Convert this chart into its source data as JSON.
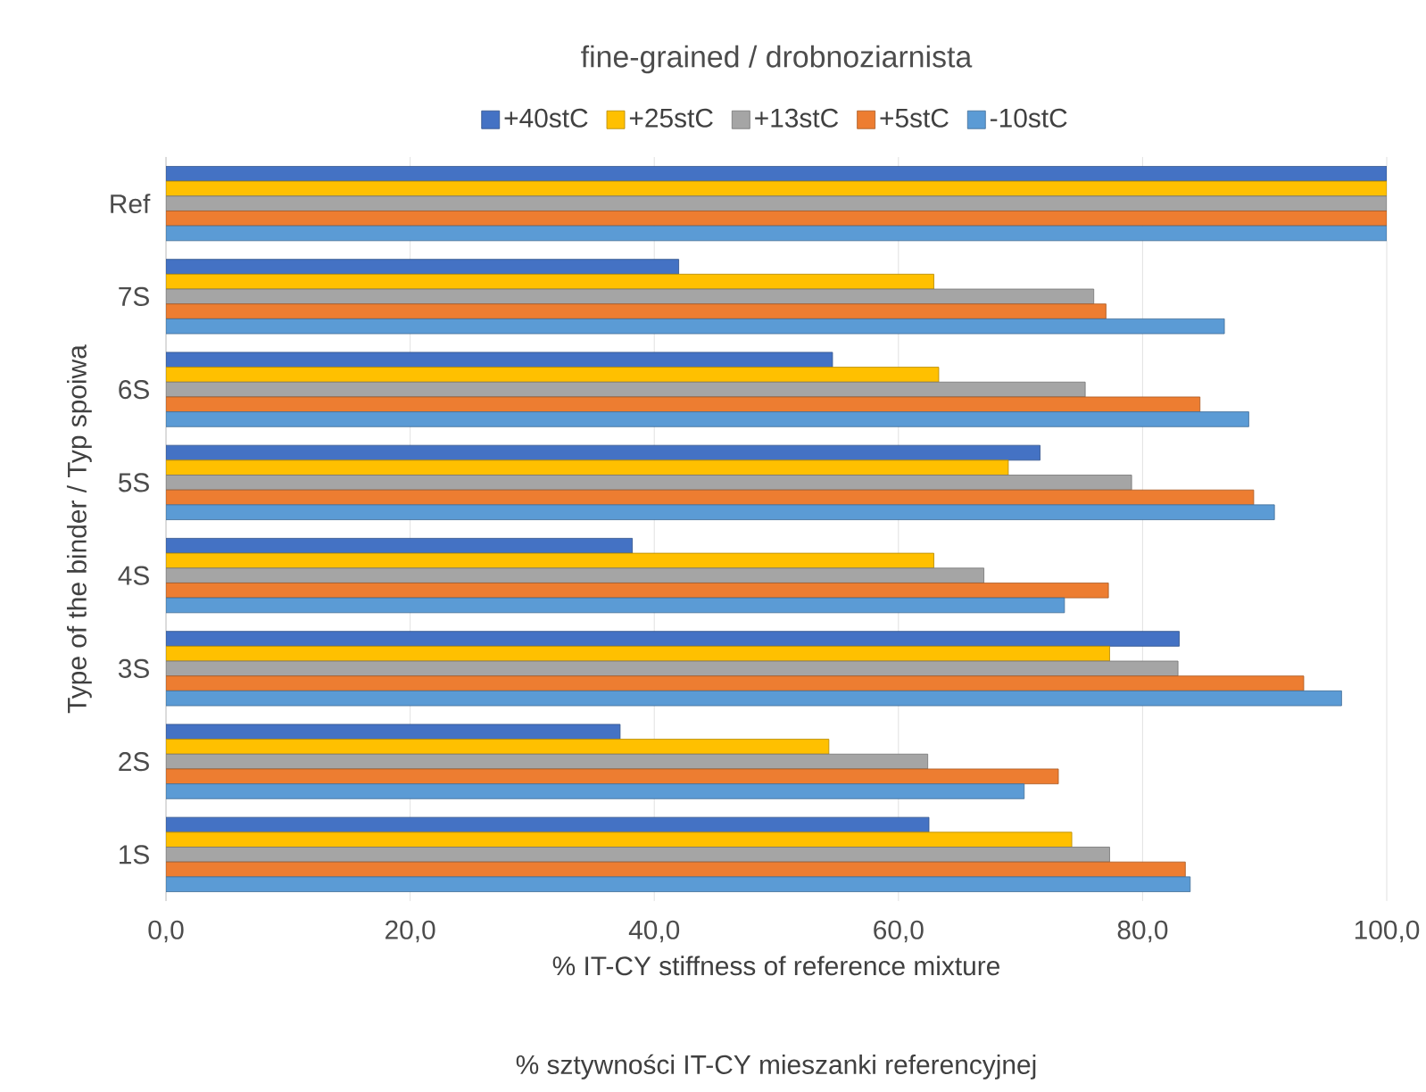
{
  "chart_data": {
    "type": "bar",
    "orientation": "horizontal",
    "title": "fine-grained / drobnoziarnista",
    "xlabel": "% IT-CY stiffness of reference mixture",
    "ylabel": "Type of the binder / Typ spoiwa",
    "annotations": [
      "% sztywności IT-CY mieszanki referencyjnej"
    ],
    "categories": [
      "Ref",
      "7S",
      "6S",
      "5S",
      "4S",
      "3S",
      "2S",
      "1S"
    ],
    "series": [
      {
        "name": "+40stC",
        "color": "#4472c4",
        "values": [
          100,
          42.0,
          54.6,
          71.6,
          38.2,
          83.0,
          37.2,
          62.5
        ]
      },
      {
        "name": "+25stC",
        "color": "#ffc000",
        "values": [
          100,
          62.9,
          63.3,
          69.0,
          62.9,
          77.3,
          54.3,
          74.2
        ]
      },
      {
        "name": "+13stC",
        "color": "#a5a5a5",
        "values": [
          100,
          76.0,
          75.3,
          79.1,
          67.0,
          82.9,
          62.4,
          77.3
        ]
      },
      {
        "name": "+5stC",
        "color": "#ed7d31",
        "values": [
          100,
          77.0,
          84.7,
          89.1,
          77.2,
          93.2,
          73.1,
          83.5
        ]
      },
      {
        "name": "-10stC",
        "color": "#5b9bd5",
        "values": [
          100,
          86.7,
          88.7,
          90.8,
          73.6,
          96.3,
          70.3,
          83.9
        ]
      }
    ],
    "xlim": [
      0,
      100
    ],
    "xticks": [
      {
        "value": 0,
        "label": "0,0"
      },
      {
        "value": 20,
        "label": "20,0"
      },
      {
        "value": 40,
        "label": "40,0"
      },
      {
        "value": 60,
        "label": "60,0"
      },
      {
        "value": 80,
        "label": "80,0"
      },
      {
        "value": 100,
        "label": "100,0"
      }
    ],
    "grid": "x",
    "legend": "top"
  }
}
